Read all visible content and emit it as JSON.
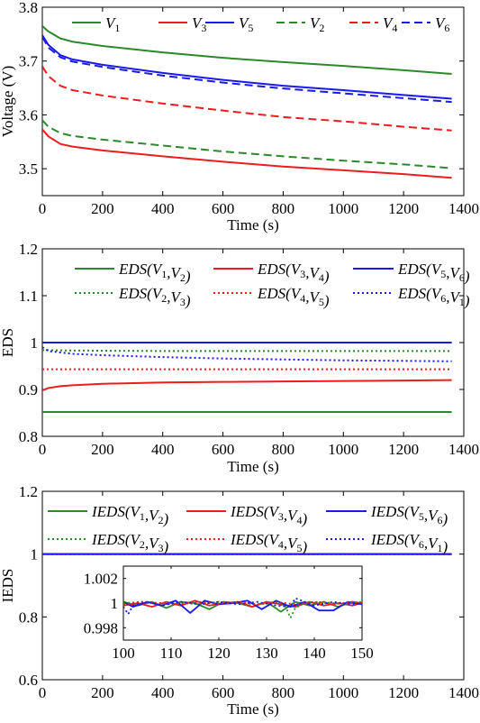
{
  "chart_data": [
    {
      "type": "line",
      "xlabel": "Time (s)",
      "ylabel": "Voltage (V)",
      "xlim": [
        0,
        1400
      ],
      "ylim": [
        3.45,
        3.8
      ],
      "xticks": [
        0,
        200,
        400,
        600,
        800,
        1000,
        1200,
        1400
      ],
      "yticks": [
        3.5,
        3.6,
        3.7,
        3.8
      ],
      "ytick_labels": [
        "3.5",
        "3.6",
        "3.7",
        "3.8"
      ],
      "grid": false,
      "legend_position": "top",
      "series": [
        {
          "name": "V1",
          "legend": {
            "base": "V",
            "sub": "1"
          },
          "color": "#2a8a2a",
          "dash": "solid",
          "x": [
            0,
            20,
            60,
            100,
            200,
            400,
            600,
            800,
            1000,
            1200,
            1360
          ],
          "y": [
            3.765,
            3.755,
            3.742,
            3.736,
            3.728,
            3.716,
            3.706,
            3.698,
            3.691,
            3.683,
            3.676
          ]
        },
        {
          "name": "V3",
          "legend": {
            "base": "V",
            "sub": "3"
          },
          "color": "#ee1c1c",
          "dash": "solid",
          "x": [
            0,
            20,
            60,
            100,
            200,
            400,
            600,
            800,
            1000,
            1200,
            1360
          ],
          "y": [
            3.573,
            3.56,
            3.546,
            3.541,
            3.534,
            3.523,
            3.513,
            3.504,
            3.497,
            3.49,
            3.483
          ]
        },
        {
          "name": "V5",
          "legend": {
            "base": "V",
            "sub": "5"
          },
          "color": "#1a1aee",
          "dash": "solid",
          "x": [
            0,
            20,
            60,
            100,
            200,
            400,
            600,
            800,
            1000,
            1200,
            1360
          ],
          "y": [
            3.748,
            3.73,
            3.711,
            3.703,
            3.693,
            3.678,
            3.665,
            3.654,
            3.646,
            3.637,
            3.63
          ]
        },
        {
          "name": "V2",
          "legend": {
            "base": "V",
            "sub": "2"
          },
          "color": "#2a8a2a",
          "dash": "dashed",
          "x": [
            0,
            20,
            60,
            100,
            200,
            400,
            600,
            800,
            1000,
            1200,
            1360
          ],
          "y": [
            3.59,
            3.578,
            3.566,
            3.561,
            3.554,
            3.543,
            3.532,
            3.523,
            3.515,
            3.508,
            3.501
          ]
        },
        {
          "name": "V4",
          "legend": {
            "base": "V",
            "sub": "4"
          },
          "color": "#ee1c1c",
          "dash": "dashed",
          "x": [
            0,
            20,
            60,
            100,
            200,
            400,
            600,
            800,
            1000,
            1200,
            1360
          ],
          "y": [
            3.69,
            3.672,
            3.654,
            3.646,
            3.636,
            3.621,
            3.608,
            3.596,
            3.588,
            3.578,
            3.571
          ]
        },
        {
          "name": "V6",
          "legend": {
            "base": "V",
            "sub": "6"
          },
          "color": "#1a1aee",
          "dash": "dashed",
          "x": [
            0,
            20,
            60,
            100,
            200,
            400,
            600,
            800,
            1000,
            1200,
            1360
          ],
          "y": [
            3.745,
            3.725,
            3.707,
            3.699,
            3.689,
            3.673,
            3.66,
            3.649,
            3.64,
            3.631,
            3.624
          ]
        }
      ]
    },
    {
      "type": "line",
      "xlabel": "Time (s)",
      "ylabel": "EDS",
      "xlim": [
        0,
        1400
      ],
      "ylim": [
        0.8,
        1.2
      ],
      "xticks": [
        0,
        200,
        400,
        600,
        800,
        1000,
        1200,
        1400
      ],
      "yticks": [
        0.8,
        0.9,
        1.0,
        1.1,
        1.2
      ],
      "ytick_labels": [
        "0.8",
        "0.9",
        "1",
        "1.1",
        "1.2"
      ],
      "grid": false,
      "legend_position": "top",
      "series": [
        {
          "name": "EDS(V1,V2)",
          "legend": {
            "fn": "EDS",
            "a": "1",
            "b": "2"
          },
          "color": "#2a8a2a",
          "dash": "solid",
          "x": [
            0,
            100,
            400,
            800,
            1200,
            1360
          ],
          "y": [
            0.852,
            0.852,
            0.852,
            0.852,
            0.852,
            0.852
          ]
        },
        {
          "name": "EDS(V3,V4)",
          "legend": {
            "fn": "EDS",
            "a": "3",
            "b": "4"
          },
          "color": "#ee1c1c",
          "dash": "solid",
          "x": [
            0,
            20,
            60,
            100,
            200,
            400,
            600,
            800,
            1000,
            1200,
            1360
          ],
          "y": [
            0.898,
            0.903,
            0.907,
            0.909,
            0.912,
            0.915,
            0.916,
            0.917,
            0.918,
            0.919,
            0.92
          ]
        },
        {
          "name": "EDS(V5,V6)",
          "legend": {
            "fn": "EDS",
            "a": "5",
            "b": "6"
          },
          "color": "#1a1aee",
          "dash": "solid",
          "x": [
            0,
            100,
            400,
            800,
            1200,
            1360
          ],
          "y": [
            1.0,
            1.0,
            1.0,
            1.0,
            1.0,
            1.0
          ]
        },
        {
          "name": "EDS(V2,V3)",
          "legend": {
            "fn": "EDS",
            "a": "2",
            "b": "3"
          },
          "color": "#2a8a2a",
          "dash": "dotted",
          "x": [
            0,
            100,
            400,
            800,
            1200,
            1360
          ],
          "y": [
            0.984,
            0.983,
            0.982,
            0.982,
            0.982,
            0.982
          ]
        },
        {
          "name": "EDS(V4,V5)",
          "legend": {
            "fn": "EDS",
            "a": "4",
            "b": "5"
          },
          "color": "#ee1c1c",
          "dash": "dotted",
          "x": [
            0,
            100,
            400,
            800,
            1200,
            1360
          ],
          "y": [
            0.943,
            0.943,
            0.943,
            0.943,
            0.943,
            0.943
          ]
        },
        {
          "name": "EDS(V6,V1)",
          "legend": {
            "fn": "EDS",
            "a": "6",
            "b": "1"
          },
          "color": "#1a1aee",
          "dash": "dotted",
          "x": [
            0,
            20,
            100,
            200,
            400,
            600,
            800,
            1000,
            1200,
            1360
          ],
          "y": [
            0.99,
            0.982,
            0.976,
            0.973,
            0.969,
            0.966,
            0.964,
            0.962,
            0.961,
            0.96
          ]
        }
      ]
    },
    {
      "type": "line",
      "xlabel": "Time (s)",
      "ylabel": "IEDS",
      "xlim": [
        0,
        1400
      ],
      "ylim": [
        0.6,
        1.2
      ],
      "xticks": [
        0,
        200,
        400,
        600,
        800,
        1000,
        1200,
        1400
      ],
      "yticks": [
        0.6,
        0.8,
        1.0,
        1.2
      ],
      "ytick_labels": [
        "0.6",
        "0.8",
        "1",
        "1.2"
      ],
      "grid": false,
      "legend_position": "top",
      "series": [
        {
          "name": "IEDS(V1,V2)",
          "legend": {
            "fn": "IEDS",
            "a": "1",
            "b": "2"
          },
          "color": "#2a8a2a",
          "dash": "solid",
          "x": [
            0,
            1360
          ],
          "y": [
            1.0,
            1.0
          ]
        },
        {
          "name": "IEDS(V3,V4)",
          "legend": {
            "fn": "IEDS",
            "a": "3",
            "b": "4"
          },
          "color": "#ee1c1c",
          "dash": "solid",
          "x": [
            0,
            1360
          ],
          "y": [
            1.0,
            1.0
          ]
        },
        {
          "name": "IEDS(V5,V6)",
          "legend": {
            "fn": "IEDS",
            "a": "5",
            "b": "6"
          },
          "color": "#1a1aee",
          "dash": "solid",
          "x": [
            0,
            1360
          ],
          "y": [
            1.0,
            1.0
          ]
        },
        {
          "name": "IEDS(V2,V3)",
          "legend": {
            "fn": "IEDS",
            "a": "2",
            "b": "3"
          },
          "color": "#2a8a2a",
          "dash": "dotted",
          "x": [
            0,
            1360
          ],
          "y": [
            1.0,
            1.0
          ]
        },
        {
          "name": "IEDS(V4,V5)",
          "legend": {
            "fn": "IEDS",
            "a": "4",
            "b": "5"
          },
          "color": "#ee1c1c",
          "dash": "dotted",
          "x": [
            0,
            1360
          ],
          "y": [
            1.0,
            1.0
          ]
        },
        {
          "name": "IEDS(V6,V1)",
          "legend": {
            "fn": "IEDS",
            "a": "6",
            "b": "1"
          },
          "color": "#1a1aee",
          "dash": "dotted",
          "x": [
            0,
            1360
          ],
          "y": [
            1.0,
            1.0
          ]
        }
      ],
      "inset": {
        "xlim": [
          100,
          150
        ],
        "ylim": [
          0.997,
          1.003
        ],
        "xticks": [
          100,
          110,
          120,
          130,
          140,
          150
        ],
        "yticks": [
          0.998,
          1.0,
          1.002
        ],
        "ytick_labels": [
          "0.998",
          "1",
          "1.002"
        ],
        "series": [
          {
            "name": "IEDS(V1,V2)",
            "color": "#2a8a2a",
            "dash": "solid",
            "x": [
              100,
              103,
              106,
              109,
              112,
              115,
              118,
              121,
              124,
              127,
              130,
              133,
              136,
              139,
              142,
              145,
              148,
              150
            ],
            "y": [
              1.0001,
              0.9998,
              1.0001,
              0.9996,
              1.0001,
              1.0,
              0.9995,
              1.0001,
              1.0,
              0.9997,
              1.0001,
              0.9993,
              1.0001,
              0.9998,
              1.0001,
              0.9997,
              1.0001,
              1.0
            ]
          },
          {
            "name": "IEDS(V3,V4)",
            "color": "#ee1c1c",
            "dash": "solid",
            "x": [
              100,
              103,
              106,
              109,
              112,
              115,
              118,
              121,
              124,
              127,
              130,
              133,
              136,
              139,
              142,
              145,
              148,
              150
            ],
            "y": [
              0.9998,
              1.0,
              0.9997,
              1.0001,
              0.9998,
              1.0002,
              0.9998,
              1.0,
              1.0001,
              0.9997,
              1.0001,
              0.9999,
              0.9997,
              1.0001,
              0.9998,
              1.0,
              0.9998,
              1.0
            ]
          },
          {
            "name": "IEDS(V5,V6)",
            "color": "#1a1aee",
            "dash": "solid",
            "x": [
              100,
              102,
              105,
              108,
              111,
              114,
              117,
              120,
              123,
              126,
              129,
              132,
              135,
              138,
              141,
              144,
              147,
              150
            ],
            "y": [
              1.0001,
              0.9997,
              1.0001,
              0.9998,
              1.0002,
              0.9992,
              1.0002,
              0.9999,
              1.0,
              1.0002,
              0.9995,
              1.0002,
              0.9997,
              1.0001,
              0.9994,
              0.9994,
              1.0001,
              0.9999
            ]
          },
          {
            "name": "IEDS(V2,V3)",
            "color": "#2a8a2a",
            "dash": "dotted",
            "x": [
              100,
              104,
              108,
              112,
              116,
              120,
              124,
              128,
              132,
              134,
              135,
              136,
              138,
              142,
              146,
              150
            ],
            "y": [
              1.0,
              1.0001,
              0.9999,
              1.0,
              0.9999,
              1.0001,
              1.0,
              0.9999,
              1.0,
              0.9997,
              0.9988,
              0.9996,
              1.0,
              1.0001,
              0.9999,
              1.0001
            ]
          },
          {
            "name": "IEDS(V4,V5)",
            "color": "#ee1c1c",
            "dash": "dotted",
            "x": [
              100,
              104,
              108,
              112,
              116,
              120,
              124,
              128,
              132,
              136,
              140,
              144,
              148,
              150
            ],
            "y": [
              0.9999,
              1.0001,
              1.0,
              0.9999,
              1.0001,
              0.9999,
              1.0001,
              0.9999,
              1.0001,
              0.9999,
              1.0001,
              0.9999,
              1.0001,
              1.0
            ]
          },
          {
            "name": "IEDS(V6,V1)",
            "color": "#1a1aee",
            "dash": "dotted",
            "x": [
              100,
              101,
              102,
              105,
              108,
              112,
              116,
              120,
              124,
              128,
              132,
              135,
              136,
              140,
              144,
              148,
              150
            ],
            "y": [
              0.9997,
              0.9991,
              0.9998,
              1.0001,
              0.9998,
              1.0001,
              0.9999,
              1.0001,
              0.9999,
              1.0001,
              0.9998,
              0.9997,
              1.0004,
              0.9998,
              1.0001,
              0.9999,
              1.0
            ]
          }
        ]
      }
    }
  ]
}
